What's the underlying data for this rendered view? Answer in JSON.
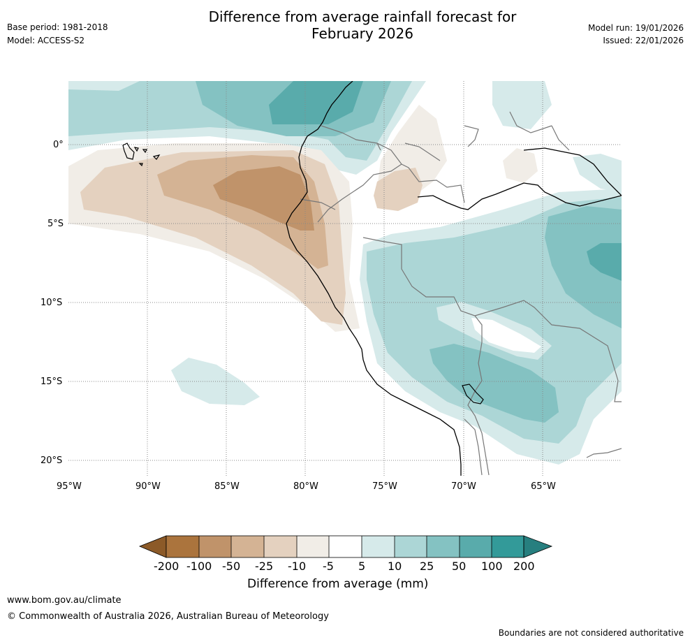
{
  "header": {
    "title_line1": "Difference from average rainfall forecast for",
    "title_line2": "February 2026",
    "base_period": "Base period: 1981-2018",
    "model": "Model: ACCESS-S2",
    "model_run": "Model run: 19/01/2026",
    "issued": "Issued: 22/01/2026"
  },
  "map": {
    "lat_labels": [
      "0°",
      "5°S",
      "10°S",
      "15°S",
      "20°S"
    ],
    "lon_labels": [
      "95°W",
      "90°W",
      "85°W",
      "80°W",
      "75°W",
      "70°W",
      "65°W"
    ]
  },
  "legend": {
    "ticks": [
      "-200",
      "-100",
      "-50",
      "-25",
      "-10",
      "-5",
      "5",
      "10",
      "25",
      "50",
      "100",
      "200"
    ],
    "label": "Difference from average (mm)",
    "colors": {
      "brown_extreme": "#8c5a28",
      "brown_strong": "#ab743d",
      "brown_med": "#c0936a",
      "brown_light": "#d4b394",
      "brown_pale": "#e4d1bf",
      "brown_faint": "#f1ede7",
      "neutral": "#ffffff",
      "teal_faint": "#d6eaea",
      "teal_pale": "#acd6d6",
      "teal_light": "#84c2c2",
      "teal_med": "#59abab",
      "teal_strong": "#339a99",
      "teal_extreme": "#277f7f"
    }
  },
  "footer": {
    "website": "www.bom.gov.au/climate",
    "copyright": "© Commonwealth of Australia 2026, Australian Bureau of Meteorology",
    "disclaimer": "Boundaries are not considered authoritative"
  }
}
